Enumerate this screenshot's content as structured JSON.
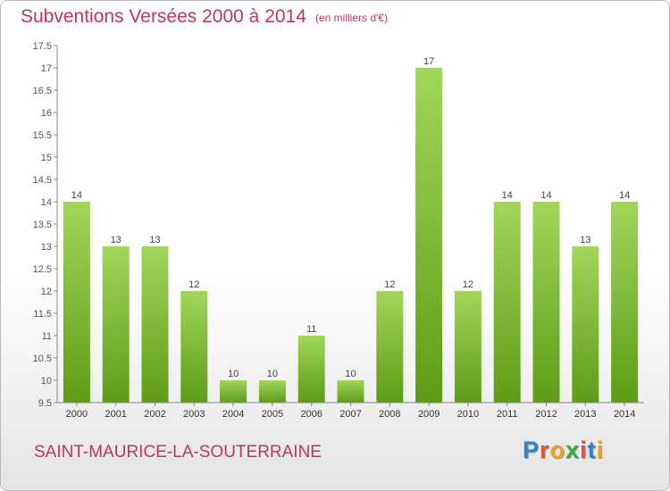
{
  "header": {
    "title": "Subventions Versées 2000 à 2014",
    "unit": "(en milliers d'€)"
  },
  "footer": {
    "commune": "SAINT-MAURICE-LA-SOUTERRAINE",
    "logo": "Proxiti",
    "logo_colors": [
      "#2f83c6",
      "#e8522a",
      "#f0a21f",
      "#3aa64a",
      "#e8522a",
      "#2f83c6",
      "#f0a21f"
    ]
  },
  "colors": {
    "title": "#c0345e",
    "bar_top": "#a2d65a",
    "bar_bottom": "#5e9c16",
    "axis": "#888888"
  },
  "chart_data": {
    "type": "bar",
    "title": "Subventions Versées 2000 à 2014",
    "xlabel": "",
    "ylabel": "",
    "categories": [
      "2000",
      "2001",
      "2002",
      "2003",
      "2004",
      "2005",
      "2006",
      "2007",
      "2008",
      "2009",
      "2010",
      "2011",
      "2012",
      "2013",
      "2014"
    ],
    "values": [
      14,
      13,
      13,
      12,
      10,
      10,
      11,
      10,
      12,
      17,
      12,
      14,
      14,
      13,
      14
    ],
    "data_labels": [
      "14",
      "13",
      "13",
      "12",
      "10",
      "10",
      "11",
      "10",
      "12",
      "17",
      "12",
      "14",
      "14",
      "13",
      "14"
    ],
    "ylim": [
      9.5,
      17.5
    ],
    "yticks": [
      9.5,
      10,
      10.5,
      11,
      11.5,
      12,
      12.5,
      13,
      13.5,
      14,
      14.5,
      15,
      15.5,
      16,
      16.5,
      17,
      17.5
    ],
    "ytick_labels": [
      "9.5",
      "10",
      "10.5",
      "11",
      "11.5",
      "12",
      "12.5",
      "13",
      "13.5",
      "14",
      "14.5",
      "15",
      "15.5",
      "16",
      "16.5",
      "17",
      "17.5"
    ],
    "grid": false,
    "legend": "none"
  }
}
